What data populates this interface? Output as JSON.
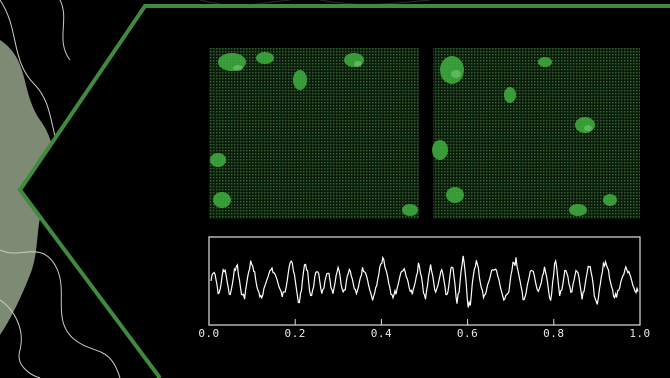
{
  "colors": {
    "background": "#000000",
    "frame": "#3f8a3f",
    "map_fill": "#7d8a74",
    "map_line": "#c9cdc4",
    "micrograph_green": "#3fb03f",
    "trace": "#ffffff"
  },
  "micrographs": [
    {
      "label": ""
    },
    {
      "label": ""
    }
  ],
  "chart_data": {
    "type": "line",
    "x_ticks": [
      "0.0",
      "0.2",
      "0.4",
      "0.6",
      "0.8",
      "1.0"
    ],
    "xlim": [
      0,
      1
    ],
    "ylim": [
      -1,
      1
    ],
    "grid": false,
    "series": [
      {
        "x": [
          0.0,
          0.1,
          0.2,
          0.3,
          0.4,
          0.5,
          0.6,
          0.7,
          0.8,
          0.9,
          1.0
        ],
        "values": [
          0.0,
          0.5,
          -0.6,
          0.3,
          -0.5,
          0.4,
          -0.8,
          0.7,
          -0.4,
          0.6,
          0.0
        ]
      }
    ]
  }
}
